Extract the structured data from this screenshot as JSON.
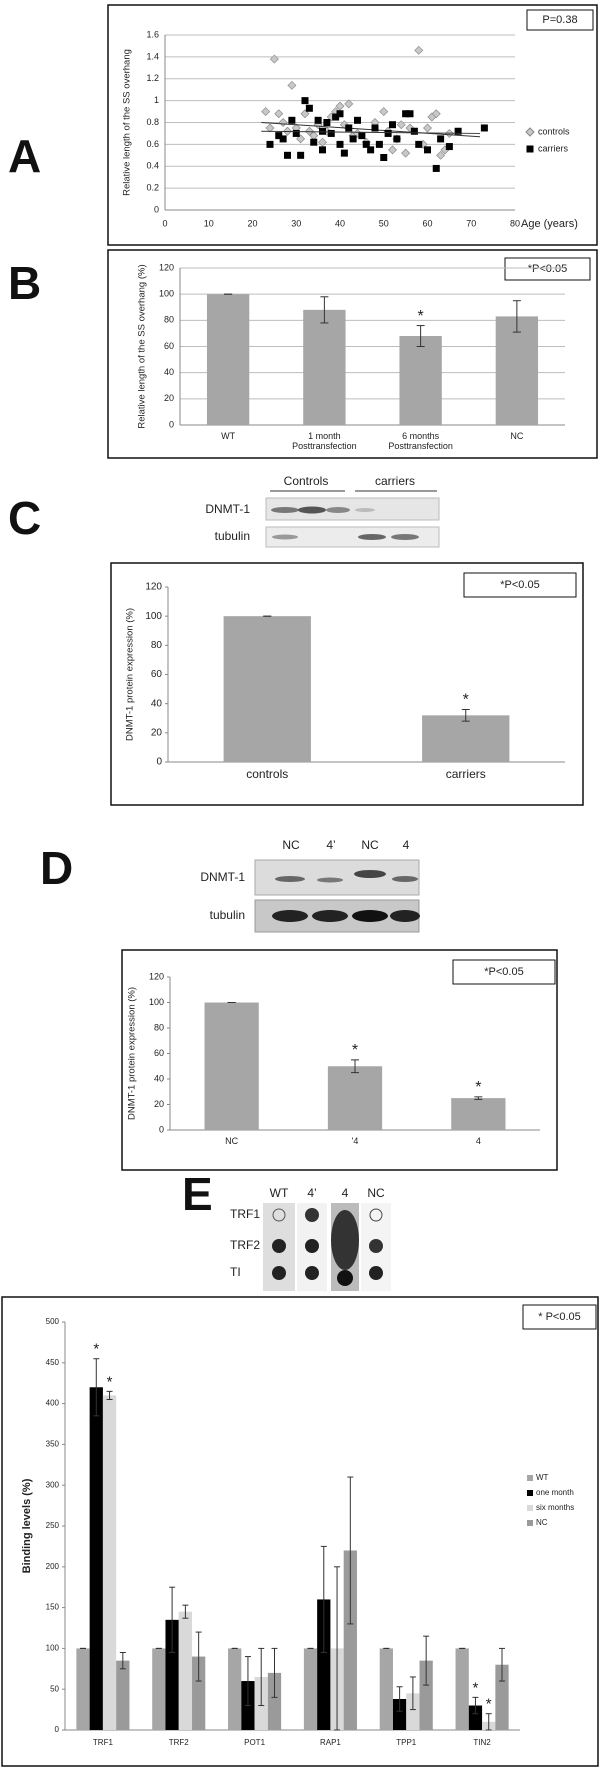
{
  "panel_labels": [
    "A",
    "B",
    "C",
    "D",
    "E"
  ],
  "blots": [
    {
      "lanes": [
        "Controls",
        "carriers"
      ],
      "rows": [
        "DNMT-1",
        "tubulin"
      ]
    },
    {
      "lanes": [
        "NC",
        "4’",
        "NC",
        "4"
      ],
      "rows": [
        "DNMT-1",
        "tubulin"
      ]
    },
    {
      "lanes": [
        "WT",
        "4’",
        "4",
        "NC"
      ],
      "rows": [
        "TRF1",
        "TRF2",
        "TI"
      ]
    }
  ],
  "chart_data": [
    {
      "type": "scatter",
      "ylabel": "Relative length of the SS overhang",
      "xlabel": "Age (years)",
      "annotation": "P=0.38",
      "xlim": [
        0,
        80
      ],
      "xticks": [
        0,
        10,
        20,
        30,
        40,
        50,
        60,
        70,
        80
      ],
      "ylim": [
        0,
        1.6
      ],
      "yticks": [
        0,
        0.2,
        0.4,
        0.6,
        0.8,
        1,
        1.2,
        1.4,
        1.6
      ],
      "grid": true,
      "legend": "right",
      "series": [
        {
          "name": "controls",
          "marker": "diamond",
          "color": "#c8c8c8",
          "x": [
            23,
            24,
            25,
            26,
            27,
            28,
            29,
            30,
            31,
            32,
            33,
            34,
            35,
            36,
            37,
            38,
            39,
            40,
            41,
            42,
            43,
            44,
            46,
            48,
            50,
            51,
            52,
            53,
            54,
            55,
            56,
            58,
            59,
            60,
            61,
            62,
            63,
            64,
            65
          ],
          "y": [
            0.9,
            0.75,
            1.38,
            0.88,
            0.8,
            0.72,
            1.14,
            0.75,
            0.65,
            0.88,
            0.72,
            0.68,
            0.78,
            0.62,
            0.72,
            0.85,
            0.9,
            0.95,
            0.78,
            0.97,
            0.68,
            0.7,
            0.62,
            0.8,
            0.9,
            0.72,
            0.55,
            0.65,
            0.78,
            0.52,
            0.75,
            1.46,
            0.6,
            0.75,
            0.85,
            0.88,
            0.5,
            0.55,
            0.7
          ],
          "trend": {
            "x": [
              22,
              72
            ],
            "y": [
              0.8,
              0.67
            ]
          }
        },
        {
          "name": "carriers",
          "marker": "square",
          "color": "#000000",
          "x": [
            24,
            26,
            27,
            28,
            29,
            30,
            31,
            32,
            33,
            34,
            35,
            36,
            36,
            37,
            38,
            39,
            40,
            40,
            41,
            42,
            43,
            44,
            45,
            46,
            47,
            48,
            49,
            50,
            51,
            52,
            53,
            55,
            56,
            57,
            58,
            60,
            62,
            63,
            65,
            67,
            73
          ],
          "y": [
            0.6,
            0.68,
            0.65,
            0.5,
            0.82,
            0.7,
            0.5,
            1.0,
            0.93,
            0.62,
            0.82,
            0.55,
            0.72,
            0.8,
            0.7,
            0.85,
            0.88,
            0.6,
            0.52,
            0.75,
            0.65,
            0.82,
            0.68,
            0.6,
            0.55,
            0.75,
            0.6,
            0.48,
            0.7,
            0.78,
            0.65,
            0.88,
            0.88,
            0.72,
            0.6,
            0.55,
            0.38,
            0.65,
            0.58,
            0.72,
            0.75
          ],
          "trend": {
            "x": [
              22,
              72
            ],
            "y": [
              0.72,
              0.7
            ]
          }
        }
      ]
    },
    {
      "type": "bar",
      "ylabel": "Relative length of the SS overhang (%)",
      "annotation": "*P<0.05",
      "color": "#a6a6a6",
      "categories": [
        "WT",
        "1 month Posttransfection",
        "6 months Posttransfection",
        "NC"
      ],
      "values": [
        100,
        88,
        68,
        83
      ],
      "errors": [
        0,
        10,
        8,
        12
      ],
      "ylim": [
        0,
        120
      ],
      "yticks": [
        0,
        20,
        40,
        60,
        80,
        100,
        120
      ],
      "grid": true,
      "significance": [
        {
          "text": "*",
          "category": "6 months Posttransfection"
        }
      ]
    },
    {
      "type": "bar",
      "ylabel": "DNMT-1 protein expression (%)",
      "annotation": "*P<0.05",
      "color": "#a6a6a6",
      "categories": [
        "controls",
        "carriers"
      ],
      "values": [
        100,
        32
      ],
      "errors": [
        0,
        4
      ],
      "ylim": [
        0,
        120
      ],
      "yticks": [
        0,
        20,
        40,
        60,
        80,
        100,
        120
      ],
      "grid": false,
      "significance": [
        {
          "text": "*",
          "category": "carriers"
        }
      ]
    },
    {
      "type": "bar",
      "ylabel": "DNMT-1 protein expression (%)",
      "annotation": "*P<0.05",
      "color": "#a6a6a6",
      "categories": [
        "NC",
        "'4",
        "4"
      ],
      "values": [
        100,
        50,
        25
      ],
      "errors": [
        0,
        5,
        1
      ],
      "ylim": [
        0,
        120
      ],
      "yticks": [
        0,
        20,
        40,
        60,
        80,
        100,
        120
      ],
      "grid": false,
      "significance": [
        {
          "text": "*",
          "category": "'4"
        },
        {
          "text": "*",
          "category": "4"
        }
      ]
    },
    {
      "type": "grouped-bar",
      "ylabel": "Binding levels (%)",
      "annotation": "* P<0.05",
      "legend": "right",
      "categories": [
        "TRF1",
        "TRF2",
        "POT1",
        "RAP1",
        "TPP1",
        "TIN2"
      ],
      "series": [
        {
          "name": "WT",
          "color": "#a6a6a6",
          "values": [
            100,
            100,
            100,
            100,
            100,
            100
          ],
          "errors": [
            0,
            0,
            0,
            0,
            0,
            0
          ]
        },
        {
          "name": "one month",
          "color": "#000000",
          "values": [
            420,
            135,
            60,
            160,
            38,
            30
          ],
          "errors": [
            35,
            40,
            30,
            65,
            15,
            10
          ]
        },
        {
          "name": "six months",
          "color": "#d9d9d9",
          "values": [
            410,
            145,
            65,
            100,
            45,
            10
          ],
          "errors": [
            5,
            8,
            35,
            100,
            20,
            10
          ]
        },
        {
          "name": "NC",
          "color": "#9a9a9a",
          "values": [
            85,
            90,
            70,
            220,
            85,
            80
          ],
          "errors": [
            10,
            30,
            30,
            90,
            30,
            20
          ]
        }
      ],
      "ylim": [
        0,
        500
      ],
      "yticks": [
        0,
        50,
        100,
        150,
        200,
        250,
        300,
        350,
        400,
        450,
        500
      ],
      "grid": false,
      "significance": [
        {
          "text": "*",
          "category": "TRF1",
          "series": "one month"
        },
        {
          "text": "*",
          "category": "TRF1",
          "series": "six months"
        },
        {
          "text": "*",
          "category": "TIN2",
          "series": "one month"
        },
        {
          "text": "*",
          "category": "TIN2",
          "series": "six months"
        }
      ]
    }
  ]
}
